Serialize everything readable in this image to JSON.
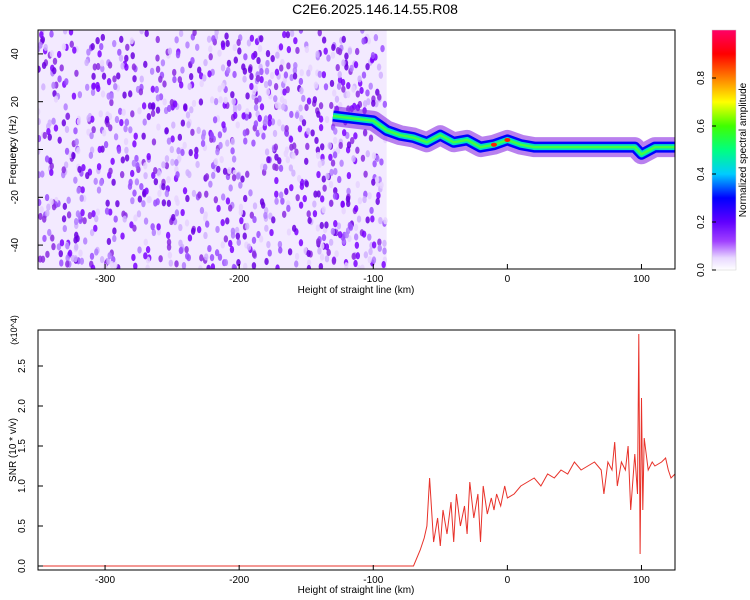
{
  "title": "C2E6.2025.146.14.55.R08",
  "colors": {
    "snr_line": "#e8322a",
    "axes": "#000000",
    "colorbar_stops": [
      "#ffffff",
      "#f0e6ff",
      "#8b00ff",
      "#0000ff",
      "#00ffff",
      "#00ff00",
      "#ffff00",
      "#ff8000",
      "#ff0000",
      "#ff0066"
    ]
  },
  "chart_data": [
    {
      "type": "heatmap",
      "xlabel": "Height of straight line (km)",
      "ylabel": "Frequency (Hz)",
      "xlim": [
        -350,
        125
      ],
      "ylim": [
        -50,
        50
      ],
      "xticks": [
        -300,
        -200,
        -100,
        0,
        100
      ],
      "yticks": [
        -40,
        -20,
        0,
        20,
        40
      ],
      "colorbar": {
        "label": "Normalized spectral amplitude",
        "range": [
          0,
          1
        ],
        "ticks": [
          "0.0",
          "0.2",
          "0.4",
          "0.6",
          "0.8"
        ]
      },
      "noise_region_km": [
        -350,
        -90
      ],
      "signal_track": {
        "x": [
          -130,
          -100,
          -90,
          -80,
          -70,
          -60,
          -50,
          -40,
          -30,
          -20,
          -10,
          0,
          10,
          20,
          40,
          60,
          80,
          95,
          100,
          110,
          125
        ],
        "freq_hz": [
          14,
          12,
          8,
          6,
          5,
          3,
          6,
          3,
          4,
          1,
          2,
          4,
          2,
          1,
          1,
          1,
          1,
          1,
          -2,
          1,
          1
        ]
      }
    },
    {
      "type": "line",
      "xlabel": "Height of straight line (km)",
      "ylabel": "SNR (10 * v/v)",
      "y_multiplier": "(x10^4)",
      "xlim": [
        -350,
        125
      ],
      "ylim": [
        -0.05,
        2.95
      ],
      "xticks": [
        -300,
        -200,
        -100,
        0,
        100
      ],
      "yticks": [
        0.0,
        0.5,
        1.0,
        1.5,
        2.0,
        2.5
      ],
      "series": [
        {
          "color": "#e8322a",
          "x": [
            -350,
            -70,
            -65,
            -62,
            -60,
            -58,
            -55,
            -52,
            -50,
            -48,
            -45,
            -42,
            -40,
            -38,
            -35,
            -32,
            -30,
            -28,
            -25,
            -22,
            -20,
            -18,
            -15,
            -12,
            -10,
            -8,
            -5,
            -2,
            0,
            5,
            10,
            15,
            20,
            25,
            30,
            35,
            40,
            45,
            50,
            55,
            60,
            65,
            70,
            72,
            75,
            78,
            80,
            82,
            85,
            88,
            90,
            92,
            95,
            97,
            98,
            99,
            100,
            101,
            102,
            105,
            108,
            110,
            115,
            118,
            120,
            122,
            125
          ],
          "y": [
            0.0,
            0.0,
            0.2,
            0.35,
            0.5,
            1.1,
            0.3,
            0.6,
            0.25,
            0.7,
            0.4,
            0.8,
            0.3,
            0.9,
            0.5,
            0.75,
            0.4,
            1.05,
            0.6,
            0.9,
            0.3,
            1.0,
            0.65,
            0.85,
            0.7,
            0.9,
            0.75,
            1.0,
            0.85,
            0.9,
            1.0,
            1.05,
            1.1,
            1.0,
            1.15,
            1.1,
            1.2,
            1.15,
            1.3,
            1.2,
            1.25,
            1.3,
            1.2,
            0.9,
            1.3,
            1.2,
            1.55,
            1.0,
            1.3,
            1.2,
            1.5,
            0.7,
            1.4,
            0.9,
            2.9,
            0.15,
            2.1,
            0.7,
            1.6,
            1.2,
            1.3,
            1.25,
            1.3,
            1.35,
            1.2,
            1.1,
            1.15
          ]
        }
      ]
    }
  ]
}
